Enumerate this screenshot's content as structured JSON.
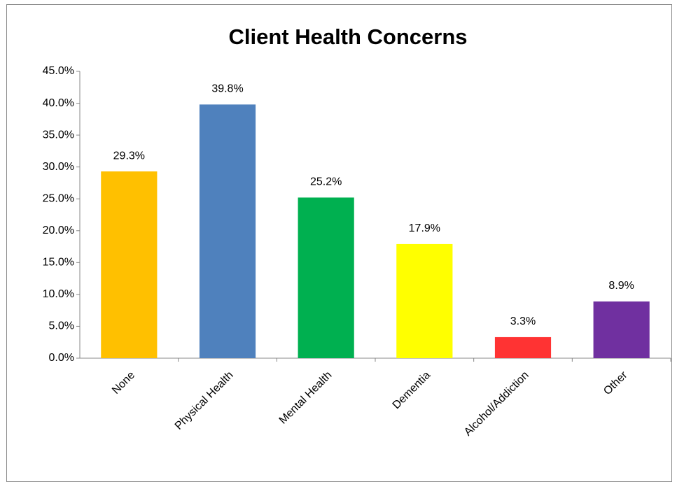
{
  "chart_data": {
    "type": "bar",
    "title": "Client Health Concerns",
    "categories": [
      "None",
      "Physical Health",
      "Mental Health",
      "Dementia",
      "Alcohol/Addiction",
      "Other"
    ],
    "values": [
      29.3,
      39.8,
      25.2,
      17.9,
      3.3,
      8.9
    ],
    "value_labels": [
      "29.3%",
      "39.8%",
      "25.2%",
      "17.9%",
      "3.3%",
      "8.9%"
    ],
    "colors": [
      "#ffc000",
      "#4f81bd",
      "#00b050",
      "#ffff00",
      "#ff3333",
      "#7030a0"
    ],
    "ylim": [
      0,
      45
    ],
    "yticks": [
      {
        "value": 0,
        "label": "0.0%"
      },
      {
        "value": 5,
        "label": "5.0%"
      },
      {
        "value": 10,
        "label": "10.0%"
      },
      {
        "value": 15,
        "label": "15.0%"
      },
      {
        "value": 20,
        "label": "20.0%"
      },
      {
        "value": 25,
        "label": "25.0%"
      },
      {
        "value": 30,
        "label": "30.0%"
      },
      {
        "value": 35,
        "label": "35.0%"
      },
      {
        "value": 40,
        "label": "40.0%"
      },
      {
        "value": 45,
        "label": "45.0%"
      }
    ],
    "grid": false
  }
}
